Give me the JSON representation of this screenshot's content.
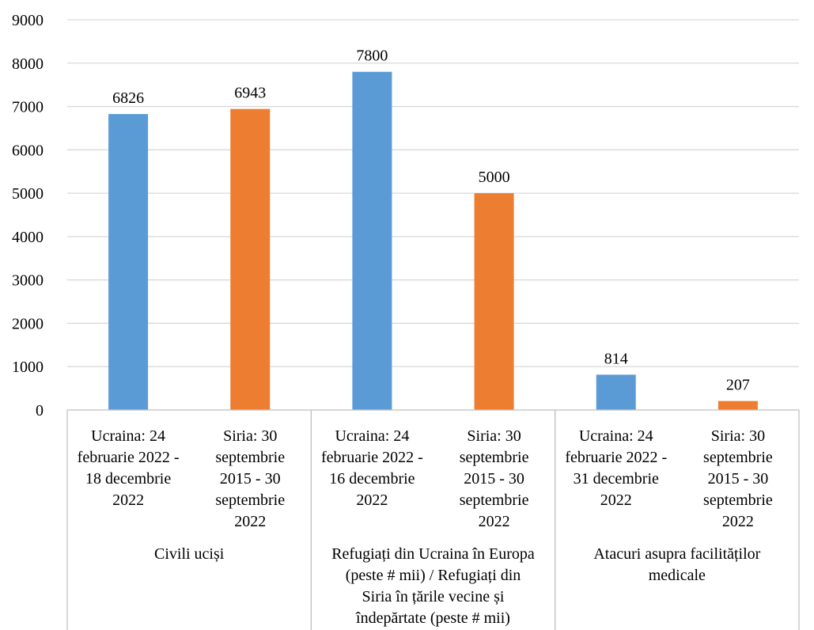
{
  "chart_data": {
    "type": "bar",
    "groups": [
      {
        "label": "Civili uciși",
        "label_lines": [
          "Civili  uciși"
        ],
        "bars": [
          {
            "label_lines": [
              "Ucraina: 24",
              "februarie 2022 -",
              "18 decembrie",
              "2022"
            ],
            "value": 6826,
            "color": "#5b9bd5"
          },
          {
            "label_lines": [
              "Siria: 30",
              "septembrie",
              "2015 - 30",
              "septembrie",
              "2022"
            ],
            "value": 6943,
            "color": "#ed7d31"
          }
        ]
      },
      {
        "label": "Refugiați din Ucraina în Europa (peste # mii) / Refugiați din Siria în țările vecine și îndepărtate (peste # mii)",
        "label_lines": [
          "Refugiați din Ucraina în Europa",
          "(peste # mii) / Refugiați din",
          "Siria în țările vecine și",
          "îndepărtate (peste # mii)"
        ],
        "bars": [
          {
            "label_lines": [
              "Ucraina: 24",
              "februarie 2022 -",
              "16 decembrie",
              "2022"
            ],
            "value": 7800,
            "color": "#5b9bd5"
          },
          {
            "label_lines": [
              "Siria: 30",
              "septembrie",
              "2015 - 30",
              "septembrie",
              "2022"
            ],
            "value": 5000,
            "color": "#ed7d31"
          }
        ]
      },
      {
        "label": "Atacuri asupra facilităților medicale",
        "label_lines": [
          "Atacuri asupra facilităților",
          "medicale"
        ],
        "bars": [
          {
            "label_lines": [
              "Ucraina: 24",
              "februarie 2022 -",
              "31 decembrie",
              "2022"
            ],
            "value": 814,
            "color": "#5b9bd5"
          },
          {
            "label_lines": [
              "Siria: 30",
              "septembrie",
              "2015 - 30",
              "septembrie",
              "2022"
            ],
            "value": 207,
            "color": "#ed7d31"
          }
        ]
      }
    ],
    "y_ticks": [
      "0",
      "1000",
      "2000",
      "3000",
      "4000",
      "5000",
      "6000",
      "7000",
      "8000",
      "9000"
    ],
    "ylim": [
      0,
      9000
    ],
    "grid": true,
    "data_labels": true,
    "legend": "none",
    "colors": {
      "ucraina": "#5b9bd5",
      "siria": "#ed7d31",
      "grid": "#d9d9d9",
      "axis": "#bfbfbf"
    }
  }
}
